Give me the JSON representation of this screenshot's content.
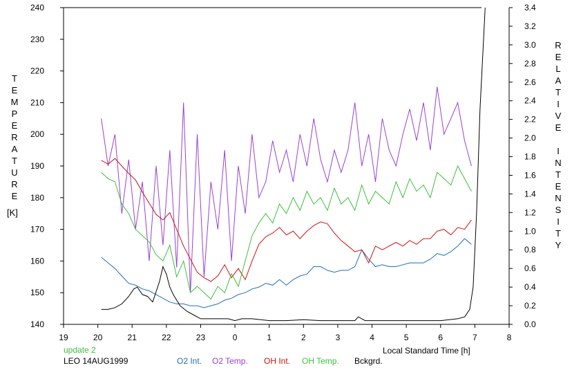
{
  "chart_data": {
    "type": "line",
    "xlabel": "Local Standard Time [h]",
    "ylabel_left": "TEMPERATURE",
    "ylabel_left_unit": "[K]",
    "ylabel_right": "RELATIVE INTENSITY",
    "xlim": [
      19,
      32
    ],
    "ylim_left": [
      140,
      240
    ],
    "ylim_right": [
      0,
      3.4
    ],
    "x_ticks": [
      19,
      20,
      21,
      22,
      23,
      24,
      25,
      26,
      27,
      28,
      29,
      30,
      31,
      32
    ],
    "x_tick_labels": [
      "19",
      "20",
      "21",
      "22",
      "23",
      "0",
      "1",
      "2",
      "3",
      "4",
      "5",
      "6",
      "7",
      "8"
    ],
    "y_left_ticks": [
      140,
      150,
      160,
      170,
      180,
      190,
      200,
      210,
      220,
      230,
      240
    ],
    "y_left_tick_labels": [
      "140",
      "150",
      "160",
      "170",
      "180",
      "190",
      "200",
      "210",
      "220",
      "230",
      "240"
    ],
    "y_right_ticks": [
      0,
      0.2,
      0.4,
      0.6,
      0.8,
      1.0,
      1.2,
      1.4,
      1.6,
      1.8,
      2.0,
      2.2,
      2.4,
      2.6,
      2.8,
      3.0,
      3.2,
      3.4
    ],
    "y_right_tick_labels": [
      "0.0",
      "0.2",
      "0.4",
      "0.6",
      "0.8",
      "1.0",
      "1.2",
      "1.4",
      "1.6",
      "1.8",
      "2.0",
      "2.2",
      "2.4",
      "2.6",
      "2.8",
      "3.0",
      "3.2",
      "3.4"
    ],
    "annotation_update": "update 2",
    "annotation_station": "LEO 14AUG1999",
    "series": [
      {
        "name": "O2 Int.",
        "axis": "right",
        "color": "#1f6fc0",
        "x": [
          20.1,
          20.3,
          20.5,
          20.7,
          20.9,
          21.1,
          21.3,
          21.5,
          21.7,
          21.9,
          22.1,
          22.3,
          22.5,
          22.7,
          22.9,
          23.1,
          23.3,
          23.5,
          23.7,
          23.9,
          24.1,
          24.3,
          24.5,
          24.7,
          24.9,
          25.1,
          25.3,
          25.5,
          25.7,
          25.9,
          26.1,
          26.3,
          26.5,
          26.7,
          26.9,
          27.1,
          27.3,
          27.5,
          27.7,
          27.9,
          28.1,
          28.3,
          28.5,
          28.7,
          28.9,
          29.1,
          29.3,
          29.5,
          29.7,
          29.9,
          30.1,
          30.3,
          30.5,
          30.7,
          30.9
        ],
        "values": [
          0.72,
          0.66,
          0.6,
          0.52,
          0.44,
          0.42,
          0.38,
          0.36,
          0.32,
          0.28,
          0.24,
          0.22,
          0.22,
          0.2,
          0.2,
          0.18,
          0.2,
          0.22,
          0.26,
          0.28,
          0.32,
          0.34,
          0.38,
          0.4,
          0.44,
          0.42,
          0.48,
          0.42,
          0.48,
          0.52,
          0.54,
          0.62,
          0.62,
          0.58,
          0.56,
          0.58,
          0.58,
          0.62,
          0.8,
          0.7,
          0.62,
          0.64,
          0.62,
          0.62,
          0.64,
          0.66,
          0.66,
          0.66,
          0.7,
          0.76,
          0.74,
          0.78,
          0.84,
          0.92,
          0.86
        ]
      },
      {
        "name": "O2 Temp.",
        "axis": "left",
        "color": "#9a40d0",
        "x": [
          20.1,
          20.3,
          20.5,
          20.7,
          20.9,
          21.1,
          21.3,
          21.5,
          21.7,
          21.9,
          22.1,
          22.3,
          22.5,
          22.7,
          22.9,
          23.1,
          23.3,
          23.5,
          23.7,
          23.9,
          24.1,
          24.3,
          24.5,
          24.7,
          24.9,
          25.1,
          25.3,
          25.5,
          25.7,
          25.9,
          26.1,
          26.3,
          26.5,
          26.7,
          26.9,
          27.1,
          27.3,
          27.5,
          27.7,
          27.9,
          28.1,
          28.3,
          28.5,
          28.7,
          28.9,
          29.1,
          29.3,
          29.5,
          29.7,
          29.9,
          30.1,
          30.3,
          30.5,
          30.7,
          30.9
        ],
        "values": [
          205,
          190,
          200,
          175,
          192,
          170,
          185,
          160,
          190,
          165,
          195,
          158,
          210,
          150,
          200,
          155,
          185,
          170,
          195,
          160,
          190,
          175,
          200,
          180,
          185,
          198,
          188,
          195,
          185,
          200,
          190,
          205,
          192,
          185,
          195,
          188,
          195,
          210,
          190,
          200,
          185,
          205,
          195,
          190,
          200,
          208,
          198,
          210,
          195,
          215,
          200,
          205,
          210,
          198,
          190
        ]
      },
      {
        "name": "OH Int.",
        "axis": "right",
        "color": "#d01010",
        "x": [
          20.1,
          20.3,
          20.5,
          20.7,
          20.9,
          21.1,
          21.3,
          21.5,
          21.7,
          21.9,
          22.1,
          22.3,
          22.5,
          22.7,
          22.9,
          23.1,
          23.3,
          23.5,
          23.7,
          23.9,
          24.1,
          24.3,
          24.5,
          24.7,
          24.9,
          25.1,
          25.3,
          25.5,
          25.7,
          25.9,
          26.1,
          26.3,
          26.5,
          26.7,
          26.9,
          27.1,
          27.3,
          27.5,
          27.7,
          27.9,
          28.1,
          28.3,
          28.5,
          28.7,
          28.9,
          29.1,
          29.3,
          29.5,
          29.7,
          29.9,
          30.1,
          30.3,
          30.5,
          30.7,
          30.9
        ],
        "values": [
          1.76,
          1.72,
          1.78,
          1.7,
          1.62,
          1.55,
          1.42,
          1.3,
          1.18,
          1.12,
          1.2,
          1.02,
          0.84,
          0.7,
          0.56,
          0.5,
          0.46,
          0.52,
          0.64,
          0.5,
          0.6,
          0.48,
          0.68,
          0.86,
          0.94,
          0.98,
          1.04,
          0.96,
          1.0,
          0.92,
          1.0,
          1.06,
          1.1,
          1.08,
          0.98,
          0.9,
          0.84,
          0.78,
          0.8,
          0.66,
          0.84,
          0.8,
          0.84,
          0.88,
          0.84,
          0.9,
          0.86,
          0.92,
          0.92,
          1.0,
          1.02,
          0.96,
          1.04,
          1.02,
          1.12
        ]
      },
      {
        "name": "OH Temp.",
        "axis": "left",
        "color": "#3cbf3c",
        "x": [
          20.1,
          20.3,
          20.5,
          20.7,
          20.9,
          21.1,
          21.3,
          21.5,
          21.7,
          21.9,
          22.1,
          22.3,
          22.5,
          22.7,
          22.9,
          23.1,
          23.3,
          23.5,
          23.7,
          23.9,
          24.1,
          24.3,
          24.5,
          24.7,
          24.9,
          25.1,
          25.3,
          25.5,
          25.7,
          25.9,
          26.1,
          26.3,
          26.5,
          26.7,
          26.9,
          27.1,
          27.3,
          27.5,
          27.7,
          27.9,
          28.1,
          28.3,
          28.5,
          28.7,
          28.9,
          29.1,
          29.3,
          29.5,
          29.7,
          29.9,
          30.1,
          30.3,
          30.5,
          30.7,
          30.9
        ],
        "values": [
          188,
          186,
          185,
          178,
          175,
          170,
          168,
          166,
          162,
          160,
          165,
          155,
          160,
          150,
          152,
          150,
          148,
          152,
          150,
          156,
          152,
          160,
          168,
          172,
          175,
          172,
          178,
          175,
          180,
          176,
          182,
          178,
          180,
          176,
          183,
          178,
          180,
          176,
          184,
          178,
          182,
          180,
          178,
          185,
          180,
          186,
          182,
          184,
          180,
          188,
          186,
          184,
          190,
          186,
          182
        ]
      },
      {
        "name": "Bckgrd.",
        "axis": "right",
        "color": "#000000",
        "x": [
          20.1,
          20.3,
          20.5,
          20.7,
          20.9,
          21.05,
          21.15,
          21.3,
          21.45,
          21.6,
          21.8,
          21.9,
          22.0,
          22.1,
          22.2,
          22.4,
          22.6,
          22.8,
          23.0,
          23.2,
          23.5,
          23.8,
          24.0,
          24.2,
          24.5,
          25.0,
          25.5,
          26.0,
          26.5,
          27.0,
          27.5,
          27.6,
          27.8,
          28.0,
          28.5,
          29.0,
          29.5,
          30.0,
          30.5,
          30.7,
          30.85,
          30.95,
          31.05,
          31.15,
          31.3
        ],
        "values": [
          0.16,
          0.16,
          0.18,
          0.22,
          0.3,
          0.38,
          0.4,
          0.32,
          0.3,
          0.24,
          0.46,
          0.62,
          0.54,
          0.4,
          0.32,
          0.2,
          0.14,
          0.1,
          0.06,
          0.06,
          0.06,
          0.06,
          0.04,
          0.06,
          0.06,
          0.04,
          0.04,
          0.05,
          0.04,
          0.04,
          0.04,
          0.08,
          0.04,
          0.04,
          0.04,
          0.04,
          0.04,
          0.04,
          0.06,
          0.08,
          0.16,
          0.4,
          1.2,
          2.3,
          3.4
        ]
      }
    ]
  }
}
